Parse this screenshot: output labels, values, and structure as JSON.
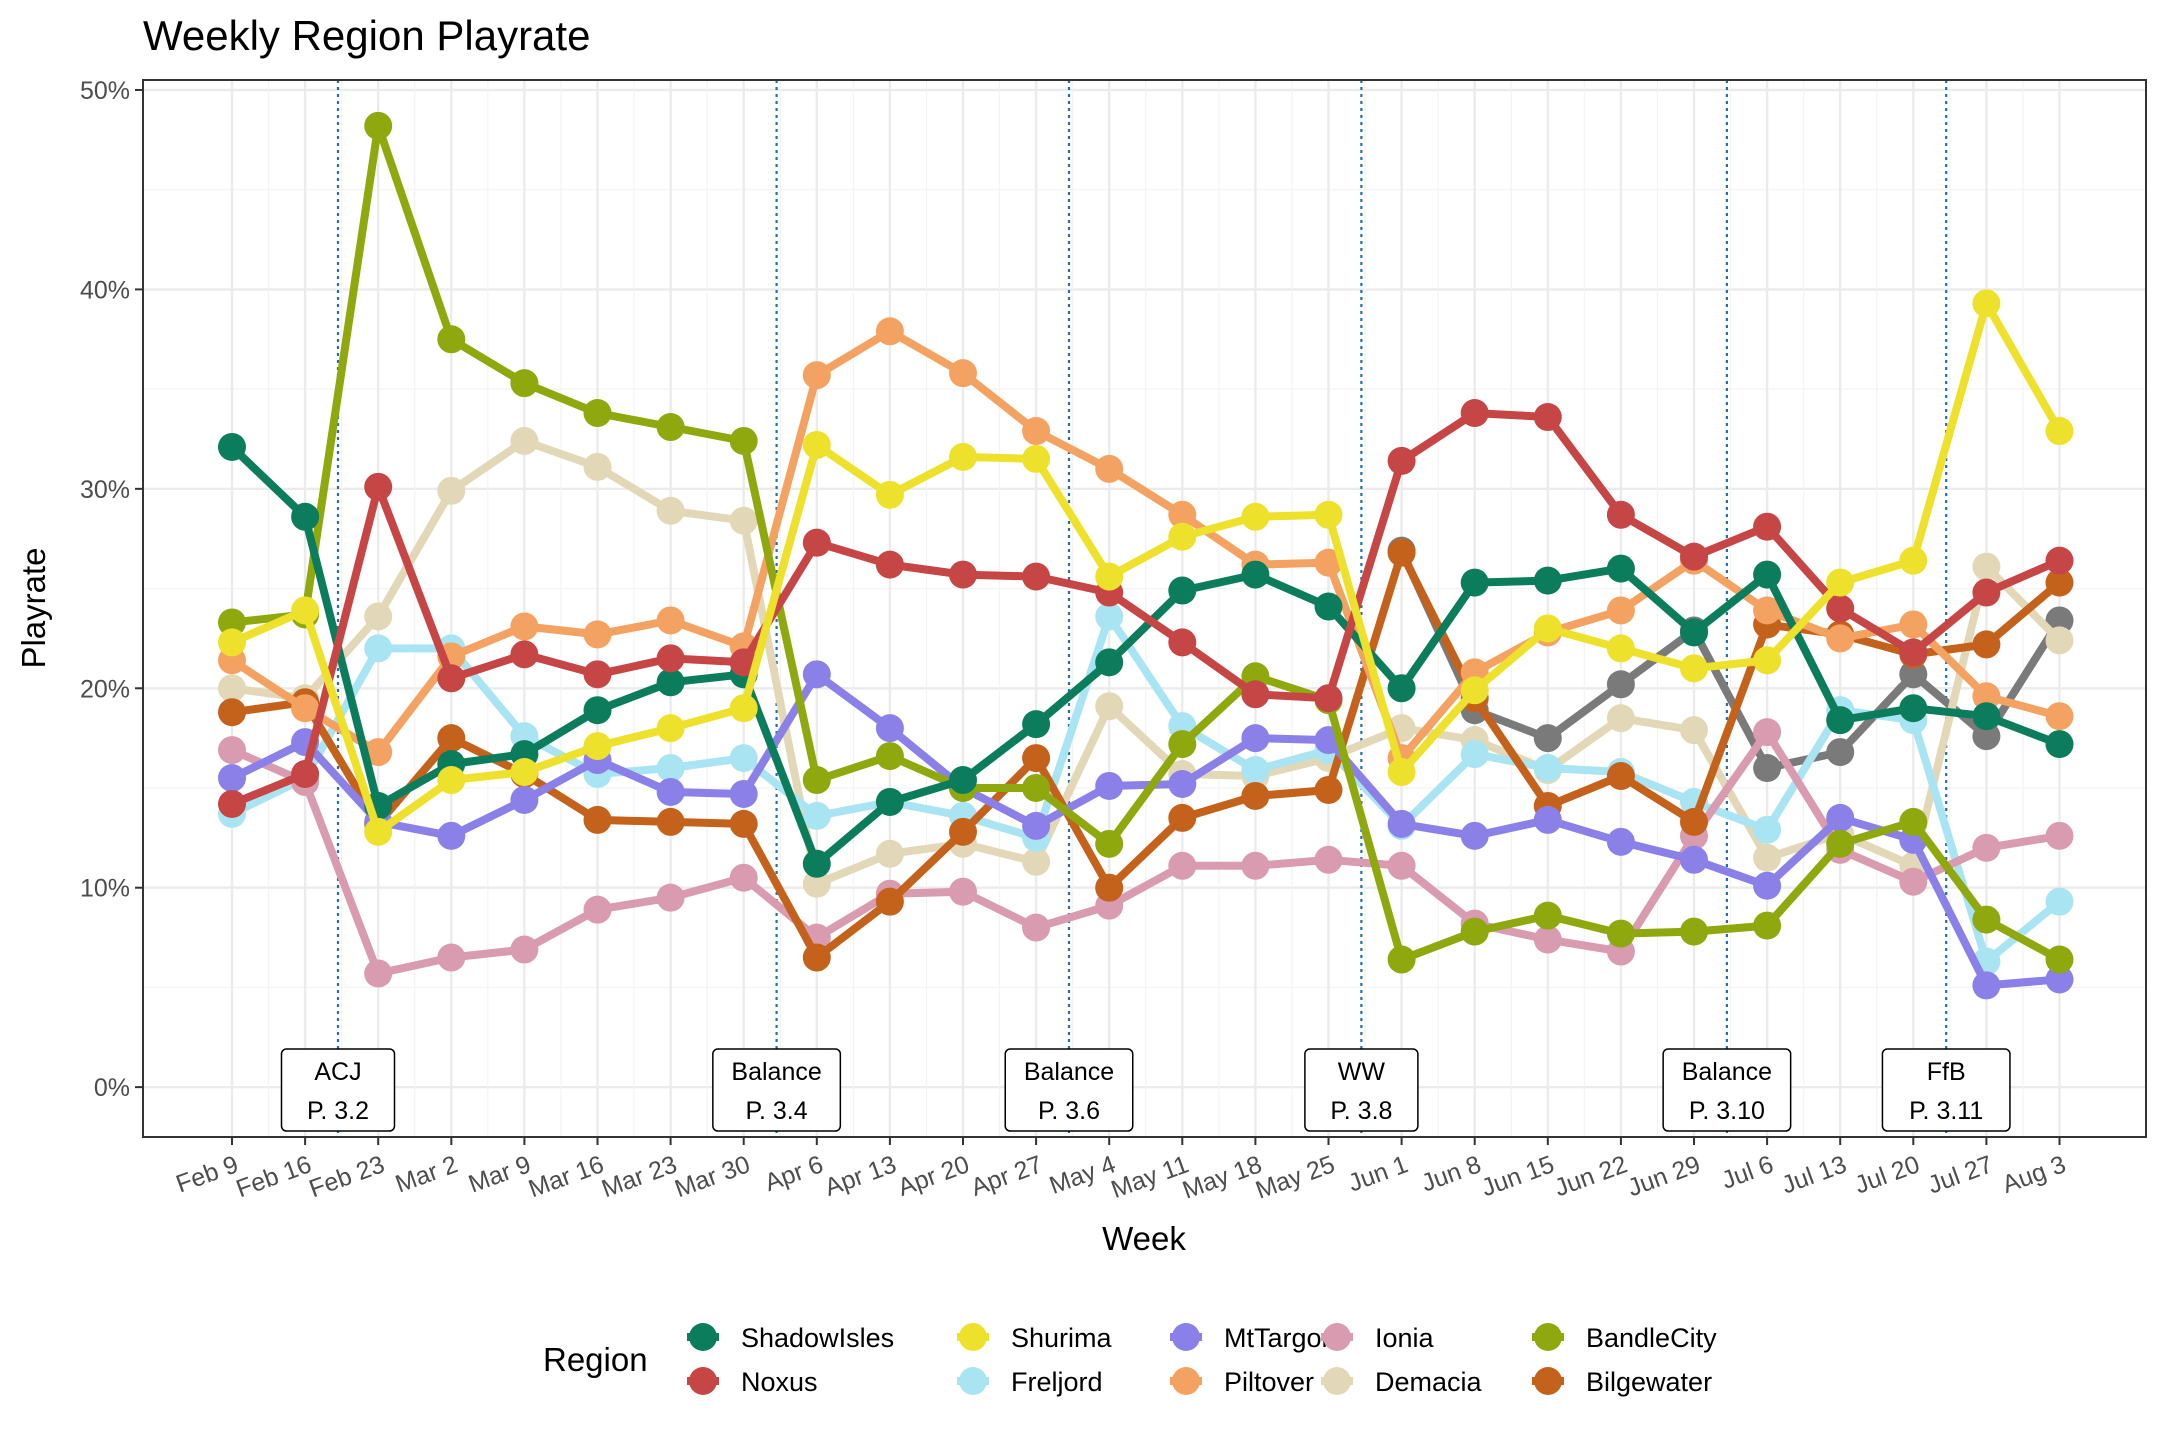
{
  "chart_data": {
    "type": "line",
    "title": "Weekly Region Playrate",
    "xlabel": "Week",
    "ylabel": "Playrate",
    "ylim": [
      -0.025,
      0.505
    ],
    "yticks": [
      0,
      0.1,
      0.2,
      0.3,
      0.4,
      0.5
    ],
    "ytick_labels": [
      "0%",
      "10%",
      "20%",
      "30%",
      "40%",
      "50%"
    ],
    "categories": [
      "Feb 9",
      "Feb 16",
      "Feb 23",
      "Mar 2",
      "Mar 9",
      "Mar 16",
      "Mar 23",
      "Mar 30",
      "Apr 6",
      "Apr 13",
      "Apr 20",
      "Apr 27",
      "May 4",
      "May 11",
      "May 18",
      "May 25",
      "Jun 1",
      "Jun 8",
      "Jun 15",
      "Jun 22",
      "Jun 29",
      "Jul 6",
      "Jul 13",
      "Jul 20",
      "Jul 27",
      "Aug 3"
    ],
    "grid": true,
    "legend_title": "Region",
    "legend_position": "bottom",
    "series": [
      {
        "name": "",
        "color": "#7a7a7a",
        "values": [
          null,
          null,
          null,
          null,
          null,
          null,
          null,
          null,
          null,
          null,
          null,
          null,
          null,
          null,
          null,
          null,
          0.269,
          0.189,
          0.175,
          0.202,
          0.229,
          0.16,
          0.168,
          0.207,
          0.176,
          0.234
        ]
      },
      {
        "name": "Demacia",
        "color": "#e2d8b8",
        "values": [
          0.2,
          0.195,
          0.236,
          0.299,
          0.324,
          0.311,
          0.289,
          0.284,
          0.102,
          0.117,
          0.122,
          0.113,
          0.191,
          0.157,
          0.156,
          0.165,
          0.18,
          0.174,
          0.159,
          0.185,
          0.179,
          0.115,
          0.127,
          0.111,
          0.261,
          0.224
        ]
      },
      {
        "name": "Freljord",
        "color": "#a9e4f2",
        "values": [
          0.137,
          0.155,
          0.22,
          0.22,
          0.176,
          0.157,
          0.16,
          0.165,
          0.136,
          0.143,
          0.136,
          0.125,
          0.236,
          0.181,
          0.159,
          0.169,
          0.131,
          0.167,
          0.16,
          0.158,
          0.143,
          0.129,
          0.189,
          0.184,
          0.063,
          0.093
        ]
      },
      {
        "name": "Ionia",
        "color": "#d89bb0",
        "values": [
          0.169,
          0.153,
          0.057,
          0.065,
          0.069,
          0.089,
          0.095,
          0.105,
          0.075,
          0.097,
          0.098,
          0.08,
          0.091,
          0.111,
          0.111,
          0.114,
          0.111,
          0.082,
          0.074,
          0.068,
          0.126,
          0.178,
          0.119,
          0.103,
          0.12,
          0.126
        ]
      },
      {
        "name": "Bilgewater",
        "color": "#c4621c",
        "values": [
          0.188,
          0.193,
          0.132,
          0.175,
          0.157,
          0.134,
          0.133,
          0.132,
          0.065,
          0.093,
          0.128,
          0.165,
          0.1,
          0.135,
          0.146,
          0.149,
          0.268,
          0.195,
          0.141,
          0.156,
          0.133,
          0.232,
          0.227,
          0.217,
          0.222,
          0.253
        ]
      },
      {
        "name": "Piltover",
        "color": "#f4a261",
        "values": [
          0.214,
          0.19,
          0.168,
          0.216,
          0.231,
          0.227,
          0.234,
          0.221,
          0.357,
          0.379,
          0.358,
          0.329,
          0.31,
          0.287,
          0.262,
          0.263,
          0.165,
          0.208,
          0.228,
          0.239,
          0.264,
          0.239,
          0.225,
          0.232,
          0.196,
          0.186
        ]
      },
      {
        "name": "MtTargon",
        "color": "#8b80e8",
        "values": [
          0.155,
          0.173,
          0.133,
          0.126,
          0.144,
          0.164,
          0.148,
          0.147,
          0.207,
          0.18,
          0.15,
          0.131,
          0.151,
          0.152,
          0.175,
          0.174,
          0.132,
          0.126,
          0.134,
          0.123,
          0.114,
          0.101,
          0.135,
          0.124,
          0.051,
          0.054
        ]
      },
      {
        "name": "BandleCity",
        "color": "#8ea80e",
        "values": [
          0.233,
          0.237,
          0.482,
          0.375,
          0.353,
          0.338,
          0.331,
          0.324,
          0.154,
          0.166,
          0.15,
          0.15,
          0.122,
          0.172,
          0.206,
          0.194,
          0.064,
          0.078,
          0.086,
          0.077,
          0.078,
          0.081,
          0.122,
          0.133,
          0.084,
          0.064
        ]
      },
      {
        "name": "ShadowIsles",
        "color": "#0c7d5c",
        "values": [
          0.321,
          0.286,
          0.141,
          0.162,
          0.167,
          0.189,
          0.203,
          0.207,
          0.112,
          0.143,
          0.154,
          0.182,
          0.213,
          0.249,
          0.257,
          0.241,
          0.2,
          0.253,
          0.254,
          0.26,
          0.228,
          0.257,
          0.184,
          0.19,
          0.186,
          0.172
        ]
      },
      {
        "name": "Noxus",
        "color": "#c64646",
        "values": [
          0.142,
          0.157,
          0.301,
          0.205,
          0.217,
          0.207,
          0.215,
          0.213,
          0.273,
          0.262,
          0.257,
          0.256,
          0.248,
          0.223,
          0.197,
          0.195,
          0.314,
          0.338,
          0.336,
          0.287,
          0.266,
          0.281,
          0.24,
          0.218,
          0.248,
          0.264
        ]
      },
      {
        "name": "Shurima",
        "color": "#ede12b",
        "values": [
          0.223,
          0.239,
          0.128,
          0.154,
          0.158,
          0.171,
          0.18,
          0.19,
          0.322,
          0.297,
          0.316,
          0.315,
          0.256,
          0.276,
          0.286,
          0.287,
          0.158,
          0.199,
          0.23,
          0.22,
          0.21,
          0.214,
          0.253,
          0.264,
          0.393,
          0.329
        ]
      }
    ],
    "legend_order": [
      "ShadowIsles",
      "Noxus",
      "Shurima",
      "Freljord",
      "MtTargon",
      "Piltover",
      "Ionia",
      "Demacia",
      "BandleCity",
      "Bilgewater"
    ],
    "events": [
      {
        "x": 1.45,
        "line1": "ACJ",
        "line2": "P. 3.2"
      },
      {
        "x": 7.45,
        "line1": "Balance",
        "line2": "P. 3.4"
      },
      {
        "x": 11.45,
        "line1": "Balance",
        "line2": "P. 3.6"
      },
      {
        "x": 15.45,
        "line1": "WW",
        "line2": "P. 3.8"
      },
      {
        "x": 20.45,
        "line1": "Balance",
        "line2": "P. 3.10"
      },
      {
        "x": 23.45,
        "line1": "FfB",
        "line2": "P. 3.11"
      }
    ]
  }
}
